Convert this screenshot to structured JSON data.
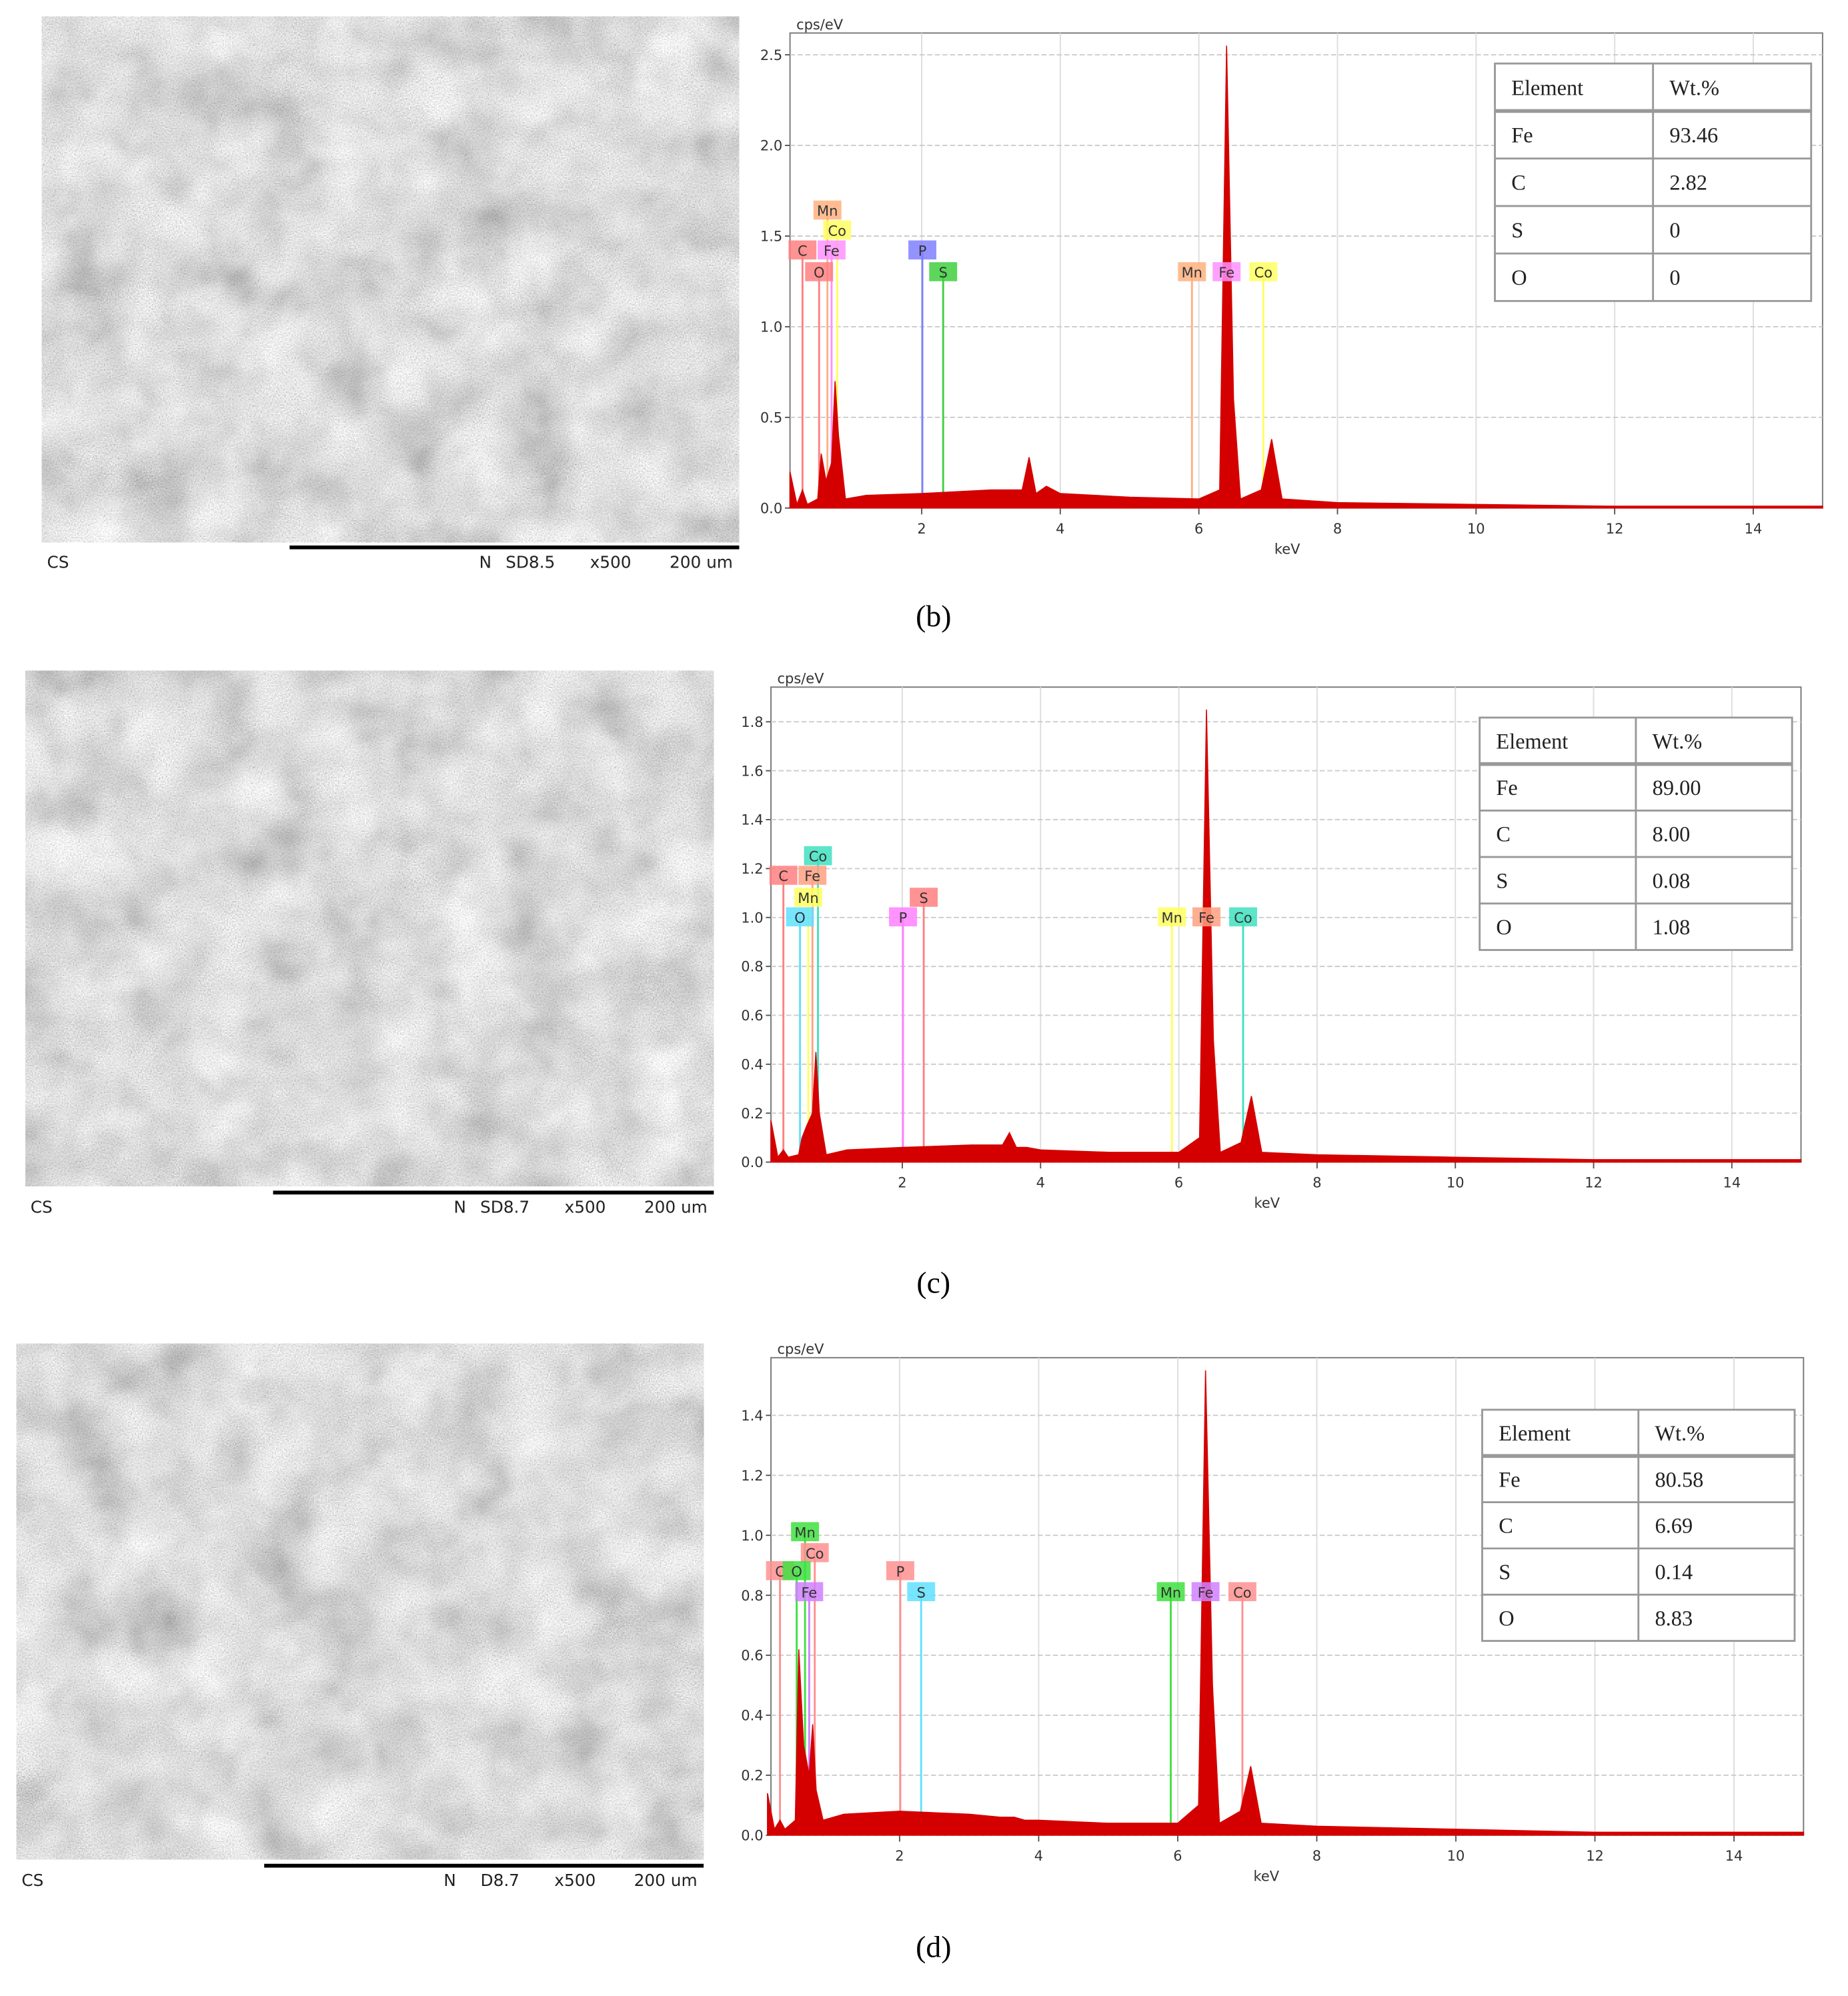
{
  "chart_data": [
    {
      "type": "area",
      "panel_label": "(b)",
      "sem_caption": [
        "CS",
        "N",
        "SD8.5",
        "x500",
        "200 um"
      ],
      "y_label": "cps/eV",
      "x_label": "keV",
      "color": "#d40000",
      "grid": true,
      "x": [
        0.1,
        0.2,
        0.28,
        0.35,
        0.5,
        0.55,
        0.62,
        0.7,
        0.75,
        0.8,
        0.9,
        1.2,
        2,
        3,
        3.45,
        3.55,
        3.65,
        3.8,
        4,
        5,
        6,
        6.3,
        6.4,
        6.5,
        6.6,
        6.9,
        7.05,
        7.2,
        8,
        10,
        12,
        15
      ],
      "values": [
        0.2,
        0.02,
        0.1,
        0.02,
        0.05,
        0.3,
        0.15,
        0.25,
        0.7,
        0.4,
        0.05,
        0.07,
        0.08,
        0.1,
        0.1,
        0.28,
        0.08,
        0.12,
        0.08,
        0.06,
        0.05,
        0.1,
        2.55,
        0.6,
        0.05,
        0.1,
        0.38,
        0.05,
        0.03,
        0.02,
        0.01,
        0.01
      ],
      "xlim": [
        0.1,
        15
      ],
      "ylim": [
        0,
        2.55
      ],
      "xticks": [
        2,
        4,
        6,
        8,
        10,
        12,
        14
      ],
      "yticks": [
        {
          "value": 0,
          "label": "0.0"
        },
        0.5,
        {
          "value": 1,
          "label": "1.0"
        },
        1.5,
        {
          "value": 2,
          "label": "2.0"
        },
        2.5
      ],
      "elements": [
        {
          "name": "Mn",
          "energy": 0.64,
          "height": 1.64,
          "color": "#ffb080"
        },
        {
          "name": "Co",
          "energy": 0.78,
          "height": 1.53,
          "color": "#ffff60"
        },
        {
          "name": "C",
          "energy": 0.28,
          "height": 1.42,
          "color": "#ff8080"
        },
        {
          "name": "Fe",
          "energy": 0.7,
          "height": 1.42,
          "color": "#ff90ff"
        },
        {
          "name": "O",
          "energy": 0.52,
          "height": 1.3,
          "color": "#ff8080"
        },
        {
          "name": "P",
          "energy": 2.01,
          "height": 1.42,
          "color": "#8080ff"
        },
        {
          "name": "S",
          "energy": 2.31,
          "height": 1.3,
          "color": "#40d040"
        },
        {
          "name": "Mn",
          "energy": 5.9,
          "height": 1.3,
          "color": "#ffb080"
        },
        {
          "name": "Fe",
          "energy": 6.4,
          "height": 1.3,
          "color": "#ff90ff"
        },
        {
          "name": "Co",
          "energy": 6.93,
          "height": 1.3,
          "color": "#ffff60"
        }
      ],
      "table": {
        "header": [
          "Element",
          "Wt.%"
        ],
        "rows": [
          [
            "Fe",
            "93.46"
          ],
          [
            "C",
            "2.82"
          ],
          [
            "S",
            "0"
          ],
          [
            "O",
            "0"
          ]
        ]
      }
    },
    {
      "type": "area",
      "panel_label": "(c)",
      "sem_caption": [
        "CS",
        "N",
        "SD8.7",
        "x500",
        "200 um"
      ],
      "y_label": "cps/eV",
      "x_label": "keV",
      "color": "#d40000",
      "grid": true,
      "x": [
        0.1,
        0.2,
        0.28,
        0.35,
        0.5,
        0.55,
        0.62,
        0.7,
        0.75,
        0.8,
        0.9,
        1.2,
        2,
        3,
        3.45,
        3.55,
        3.65,
        3.8,
        4,
        5,
        6,
        6.3,
        6.4,
        6.5,
        6.6,
        6.9,
        7.05,
        7.2,
        8,
        10,
        12,
        15
      ],
      "values": [
        0.17,
        0.02,
        0.05,
        0.02,
        0.03,
        0.1,
        0.15,
        0.2,
        0.45,
        0.2,
        0.03,
        0.05,
        0.06,
        0.07,
        0.07,
        0.12,
        0.06,
        0.06,
        0.05,
        0.04,
        0.04,
        0.1,
        1.85,
        0.5,
        0.04,
        0.08,
        0.27,
        0.04,
        0.03,
        0.02,
        0.01,
        0.01
      ],
      "xlim": [
        0.1,
        15
      ],
      "ylim": [
        0,
        1.89
      ],
      "xticks": [
        2,
        4,
        6,
        8,
        10,
        12,
        14
      ],
      "yticks": [
        {
          "value": 0,
          "label": "0.0"
        },
        0.2,
        0.4,
        0.6,
        0.8,
        {
          "value": 1,
          "label": "1.0"
        },
        1.2,
        1.4,
        1.6,
        1.8
      ],
      "elements": [
        {
          "name": "Co",
          "energy": 0.78,
          "height": 1.25,
          "color": "#40e0c0"
        },
        {
          "name": "C",
          "energy": 0.28,
          "height": 1.17,
          "color": "#ff8080"
        },
        {
          "name": "Fe",
          "energy": 0.7,
          "height": 1.17,
          "color": "#ffa080"
        },
        {
          "name": "Mn",
          "energy": 0.64,
          "height": 1.08,
          "color": "#ffff60"
        },
        {
          "name": "O",
          "energy": 0.52,
          "height": 1.0,
          "color": "#60e0ff"
        },
        {
          "name": "P",
          "energy": 2.01,
          "height": 1.0,
          "color": "#ff80ff"
        },
        {
          "name": "S",
          "energy": 2.31,
          "height": 1.08,
          "color": "#ff8080"
        },
        {
          "name": "Mn",
          "energy": 5.9,
          "height": 1.0,
          "color": "#ffff60"
        },
        {
          "name": "Fe",
          "energy": 6.4,
          "height": 1.0,
          "color": "#ffa080"
        },
        {
          "name": "Co",
          "energy": 6.93,
          "height": 1.0,
          "color": "#40e0c0"
        }
      ],
      "table": {
        "header": [
          "Element",
          "Wt.%"
        ],
        "rows": [
          [
            "Fe",
            "89.00"
          ],
          [
            "C",
            "8.00"
          ],
          [
            "S",
            "0.08"
          ],
          [
            "O",
            "1.08"
          ]
        ]
      }
    },
    {
      "type": "area",
      "panel_label": "(d)",
      "sem_caption": [
        "CS",
        "N",
        "D8.7",
        "x500",
        "200 um"
      ],
      "y_label": "cps/eV",
      "x_label": "keV",
      "color": "#d40000",
      "grid": true,
      "x": [
        0.1,
        0.2,
        0.28,
        0.35,
        0.5,
        0.55,
        0.62,
        0.7,
        0.75,
        0.8,
        0.9,
        1.2,
        2,
        3,
        3.45,
        3.55,
        3.65,
        3.8,
        4,
        5,
        6,
        6.3,
        6.4,
        6.5,
        6.6,
        6.9,
        7.05,
        7.2,
        8,
        10,
        12,
        15
      ],
      "values": [
        0.14,
        0.02,
        0.05,
        0.02,
        0.05,
        0.62,
        0.3,
        0.2,
        0.37,
        0.15,
        0.05,
        0.07,
        0.08,
        0.07,
        0.06,
        0.06,
        0.06,
        0.05,
        0.05,
        0.04,
        0.04,
        0.1,
        1.55,
        0.5,
        0.04,
        0.08,
        0.23,
        0.04,
        0.03,
        0.02,
        0.01,
        0.01
      ],
      "xlim": [
        0.15,
        15
      ],
      "ylim": [
        0,
        1.55
      ],
      "xticks": [
        2,
        4,
        6,
        8,
        10,
        12,
        14
      ],
      "yticks": [
        {
          "value": 0,
          "label": "0.0"
        },
        0.2,
        0.4,
        0.6,
        0.8,
        {
          "value": 1,
          "label": "1.0"
        },
        1.2,
        1.4
      ],
      "elements": [
        {
          "name": "Mn",
          "energy": 0.64,
          "height": 1.01,
          "color": "#40e040"
        },
        {
          "name": "Co",
          "energy": 0.78,
          "height": 0.94,
          "color": "#ff9090"
        },
        {
          "name": "C",
          "energy": 0.28,
          "height": 0.88,
          "color": "#ff9090"
        },
        {
          "name": "O",
          "energy": 0.52,
          "height": 0.88,
          "color": "#40e040"
        },
        {
          "name": "Fe",
          "energy": 0.7,
          "height": 0.81,
          "color": "#d080ff"
        },
        {
          "name": "P",
          "energy": 2.01,
          "height": 0.88,
          "color": "#ff9090"
        },
        {
          "name": "S",
          "energy": 2.31,
          "height": 0.81,
          "color": "#60e0ff"
        },
        {
          "name": "Mn",
          "energy": 5.9,
          "height": 0.81,
          "color": "#40e040"
        },
        {
          "name": "Fe",
          "energy": 6.4,
          "height": 0.81,
          "color": "#d080ff"
        },
        {
          "name": "Co",
          "energy": 6.93,
          "height": 0.81,
          "color": "#ff9090"
        }
      ],
      "table": {
        "header": [
          "Element",
          "Wt.%"
        ],
        "rows": [
          [
            "Fe",
            "80.58"
          ],
          [
            "C",
            "6.69"
          ],
          [
            "S",
            "0.14"
          ],
          [
            "O",
            "8.83"
          ]
        ]
      }
    }
  ]
}
